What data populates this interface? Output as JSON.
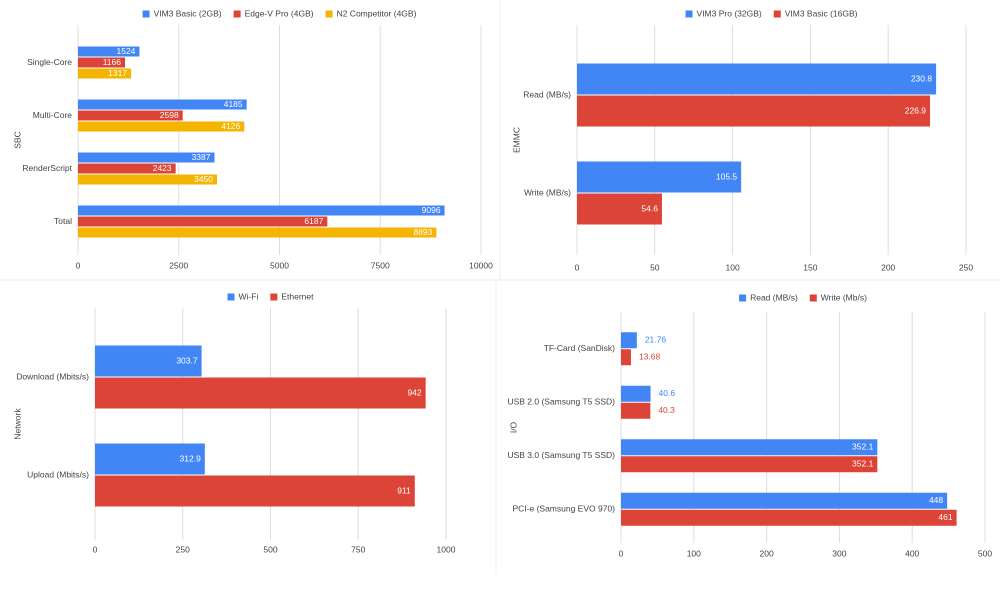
{
  "chart_data": [
    {
      "type": "bar",
      "y_label": "SBC",
      "categories": [
        "Single-Core",
        "Multi-Core",
        "RenderScript",
        "Total"
      ],
      "series": [
        {
          "name": "VIM3 Basic (2GB)",
          "color": "#4285f4",
          "values": [
            1524,
            4185,
            3387,
            9096
          ]
        },
        {
          "name": "Edge-V Pro (4GB)",
          "color": "#db4437",
          "values": [
            1166,
            2598,
            2423,
            6187
          ]
        },
        {
          "name": "N2 Competitor (4GB)",
          "color": "#f4b400",
          "values": [
            1317,
            4126,
            3450,
            8893
          ]
        }
      ],
      "xlim": [
        0,
        10000
      ],
      "xticks": [
        0,
        2500,
        5000,
        7500,
        10000
      ],
      "grid": true
    },
    {
      "type": "bar",
      "y_label": "EMMC",
      "categories": [
        "Read (MB/s)",
        "Write (MB/s)"
      ],
      "series": [
        {
          "name": "VIM3 Pro (32GB)",
          "color": "#4285f4",
          "values": [
            230.8,
            105.5
          ]
        },
        {
          "name": "VIM3 Basic (16GB)",
          "color": "#db4437",
          "values": [
            226.9,
            54.6
          ]
        }
      ],
      "xlim": [
        0,
        250
      ],
      "xticks": [
        0,
        50,
        100,
        150,
        200,
        250
      ],
      "grid": true
    },
    {
      "type": "bar",
      "y_label": "Network",
      "categories": [
        "Download (Mbits/s)",
        "Upload (Mbits/s)"
      ],
      "series": [
        {
          "name": "Wi-Fi",
          "color": "#4285f4",
          "values": [
            303.7,
            312.9
          ]
        },
        {
          "name": "Ethernet",
          "color": "#db4437",
          "values": [
            942,
            911
          ]
        }
      ],
      "xlim": [
        0,
        1000
      ],
      "xticks": [
        0,
        250,
        500,
        750,
        1000
      ],
      "grid": true
    },
    {
      "type": "bar",
      "y_label": "I/O",
      "categories": [
        "TF-Card (SanDisk)",
        "USB 2.0 (Samsung T5 SSD)",
        "USB 3.0 (Samsung T5 SSD)",
        "PCI-e (Samsung EVO 970)"
      ],
      "series": [
        {
          "name": "Read (MB/s)",
          "color": "#4285f4",
          "values": [
            21.76,
            40.6,
            352.1,
            448
          ]
        },
        {
          "name": "Write (Mb/s)",
          "color": "#db4437",
          "values": [
            13.68,
            40.3,
            352.1,
            461
          ]
        }
      ],
      "xlim": [
        0,
        500
      ],
      "xticks": [
        0,
        100,
        200,
        300,
        400,
        500
      ],
      "grid": true
    }
  ]
}
